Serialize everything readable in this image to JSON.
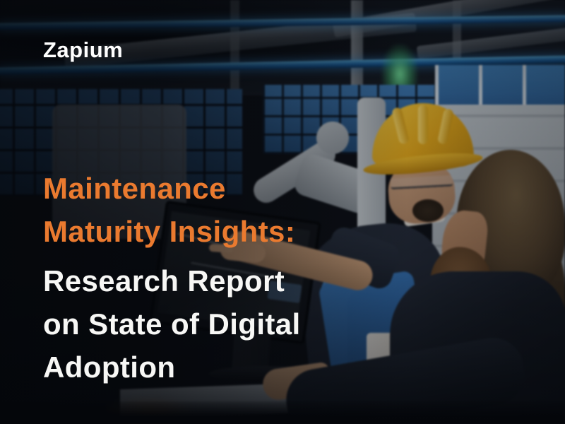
{
  "brand": {
    "logo_text": "Zapium"
  },
  "headline": {
    "accent_lines": [
      "Maintenance",
      "Maturity Insights:"
    ],
    "title_lines": [
      "Research Report",
      "on State of Digital",
      "Adoption"
    ]
  },
  "colors": {
    "accent_orange": "#EA7A2F",
    "headline_white": "#F7F7F5",
    "logo_white": "#FFFFFF",
    "pipe_blue": "#2B7BC0",
    "window_blue": "#2E6CA8",
    "hardhat_yellow": "#EFB219",
    "overalls_blue": "#2E6FB5",
    "suit_navy": "#161B25",
    "background_dark": "#0B0E14",
    "green_light": "#3FD66F"
  }
}
